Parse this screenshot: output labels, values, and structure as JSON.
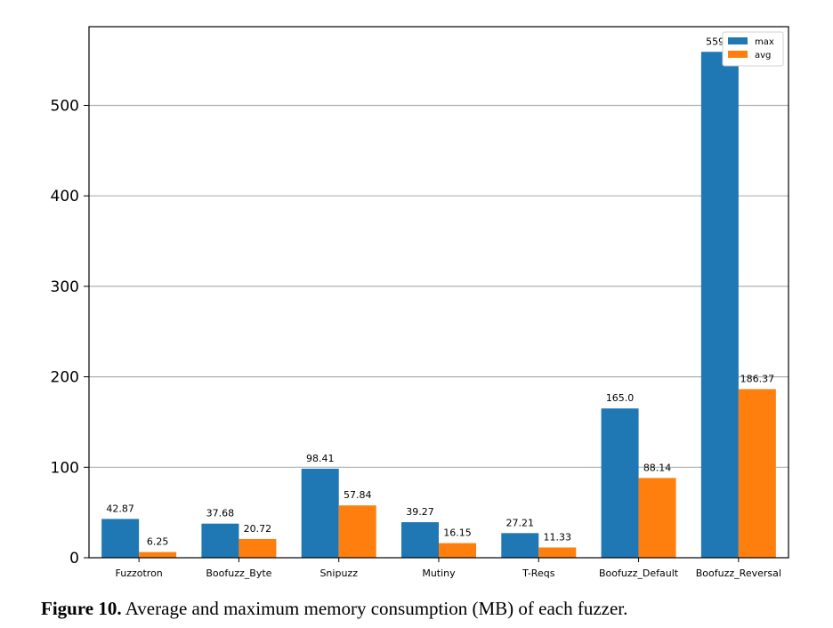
{
  "caption": {
    "label": "Figure 10.",
    "text": "Average and maximum memory consumption (MB) of each fuzzer."
  },
  "chart_data": {
    "type": "bar",
    "title": "",
    "xlabel": "",
    "ylabel": "",
    "categories": [
      "Fuzzotron",
      "Boofuzz_Byte",
      "Snipuzz",
      "Mutiny",
      "T-Reqs",
      "Boofuzz_Default",
      "Boofuzz_Reversal"
    ],
    "series": [
      {
        "name": "max",
        "values": [
          42.87,
          37.68,
          98.41,
          39.27,
          27.21,
          165.0,
          559.2
        ],
        "labels": [
          "42.87",
          "37.68",
          "98.41",
          "39.27",
          "27.21",
          "165.0",
          "559.2"
        ],
        "color": "#1f77b4"
      },
      {
        "name": "avg",
        "values": [
          6.25,
          20.72,
          57.84,
          16.15,
          11.33,
          88.14,
          186.37
        ],
        "labels": [
          "6.25",
          "20.72",
          "57.84",
          "16.15",
          "11.33",
          "88.14",
          "186.37"
        ],
        "color": "#ff7f0e"
      }
    ],
    "ylim": [
      0,
      587
    ],
    "yticks": [
      0,
      100,
      200,
      300,
      400,
      500
    ],
    "grid": "y",
    "legend": "top-right"
  }
}
